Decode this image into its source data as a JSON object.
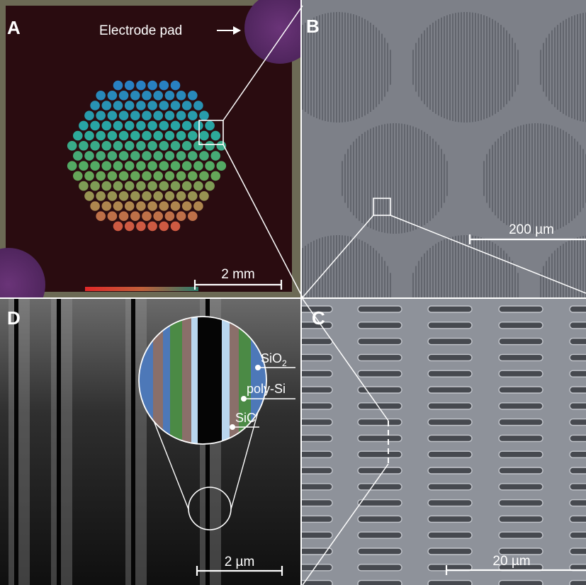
{
  "figure": {
    "panels": {
      "a": {
        "letter": "A",
        "annotation": "Electrode pad",
        "scalebar": "2 mm"
      },
      "b": {
        "letter": "B",
        "scalebar": "200 µm"
      },
      "c": {
        "letter": "C",
        "scalebar": "20 µm"
      },
      "d": {
        "letter": "D",
        "scalebar": "2 µm",
        "layer_labels": {
          "sio2_base": "SiO",
          "sio2_sub": "2",
          "polysi": "poly-Si",
          "sic": "SiC"
        }
      }
    },
    "colors": {
      "chip_background": "#2a0c10",
      "frame": "#6c6a55",
      "electrode_pad": "#5a2a68",
      "sem_gray": "#7d8088",
      "sem_dark": "#4a4d55",
      "sio2_tint": "#4d78b8",
      "polysi_tint": "#8a6f6a",
      "sic_tint": "#4b8a45"
    }
  }
}
